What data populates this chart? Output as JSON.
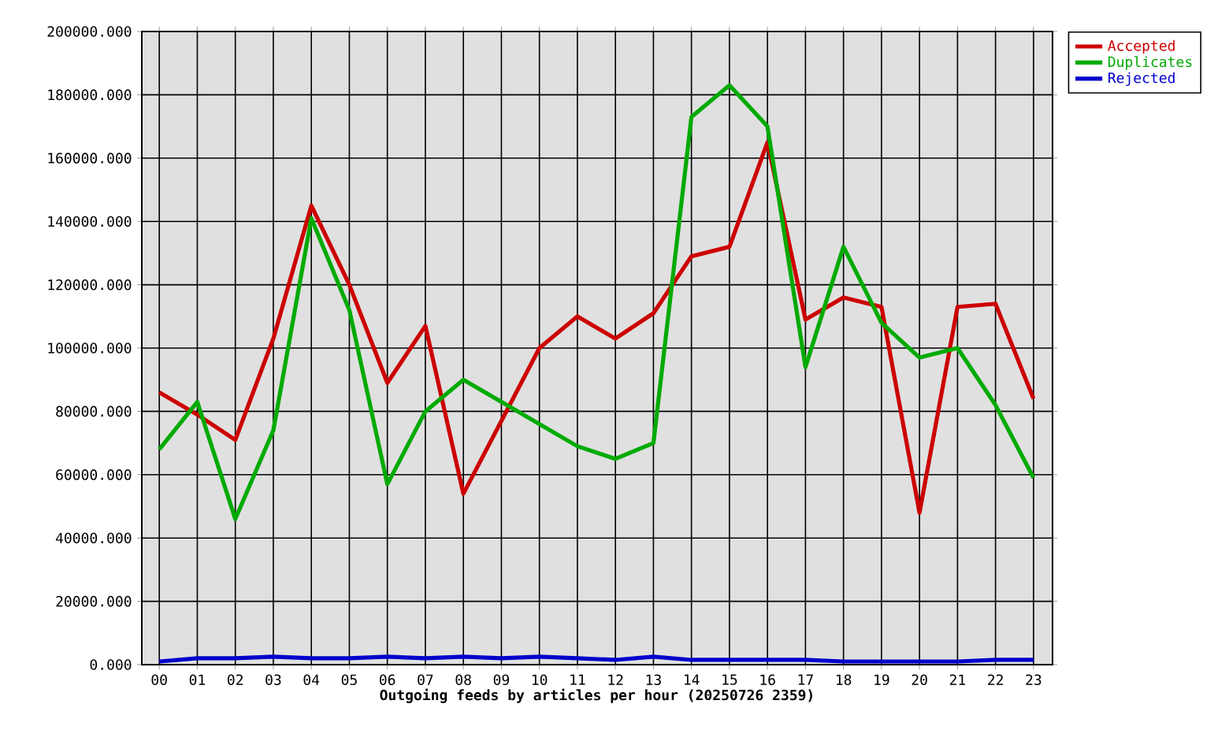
{
  "chart_data": {
    "type": "line",
    "xlabel": "Outgoing feeds by articles per hour (20250726 2359)",
    "categories": [
      "00",
      "01",
      "02",
      "03",
      "04",
      "05",
      "06",
      "07",
      "08",
      "09",
      "10",
      "11",
      "12",
      "13",
      "14",
      "15",
      "16",
      "17",
      "18",
      "19",
      "20",
      "21",
      "22",
      "23"
    ],
    "series": [
      {
        "name": "Accepted",
        "color": "#cc0000",
        "values": [
          86000,
          79000,
          71000,
          103000,
          145000,
          120000,
          89000,
          107000,
          54000,
          77000,
          100000,
          110000,
          103000,
          111000,
          129000,
          132000,
          165000,
          109000,
          116000,
          113000,
          48000,
          113000,
          114000,
          84000
        ]
      },
      {
        "name": "Duplicates",
        "color": "#00aa00",
        "values": [
          68000,
          83000,
          46000,
          74000,
          141000,
          112000,
          57000,
          80000,
          90000,
          83000,
          76000,
          69000,
          65000,
          70000,
          173000,
          183000,
          170000,
          94000,
          132000,
          108000,
          97000,
          100000,
          82000,
          59000
        ]
      },
      {
        "name": "Rejected",
        "color": "#0000cc",
        "values": [
          1000,
          2000,
          2000,
          2500,
          2000,
          2000,
          2500,
          2000,
          2500,
          2000,
          2500,
          2000,
          1500,
          2500,
          1500,
          1500,
          1500,
          1500,
          1000,
          1000,
          1000,
          1000,
          1500,
          1500
        ]
      }
    ],
    "ylim": [
      0,
      200000
    ],
    "yticks": [
      {
        "value": 0,
        "label": "0.000"
      },
      {
        "value": 20000,
        "label": "20000.000"
      },
      {
        "value": 40000,
        "label": "40000.000"
      },
      {
        "value": 60000,
        "label": "60000.000"
      },
      {
        "value": 80000,
        "label": "80000.000"
      },
      {
        "value": 100000,
        "label": "100000.000"
      },
      {
        "value": 120000,
        "label": "120000.000"
      },
      {
        "value": 140000,
        "label": "140000.000"
      },
      {
        "value": 160000,
        "label": "160000.000"
      },
      {
        "value": 180000,
        "label": "180000.000"
      },
      {
        "value": 200000,
        "label": "200000.000"
      }
    ],
    "grid": true,
    "legend": "top right",
    "marker": "none",
    "line_style": "solid"
  }
}
